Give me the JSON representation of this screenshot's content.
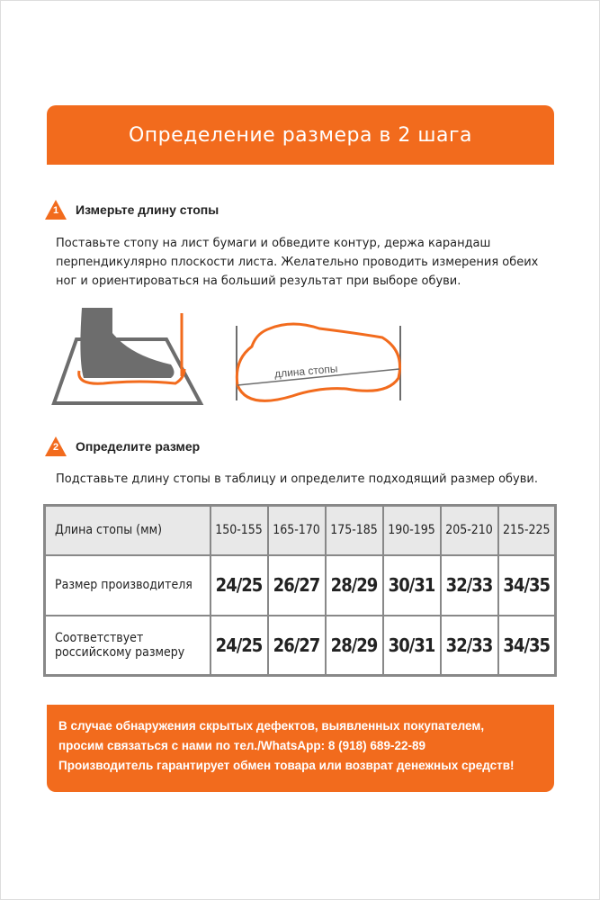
{
  "header": {
    "title": "Определение размера в 2 шага"
  },
  "step1": {
    "number": "1",
    "title": "Измерьте длину стопы",
    "text": [
      "Поставьте стопу на лист бумаги и обведите контур, держа карандаш",
      "перпендикулярно плоскости листа. Желательно проводить измерения обеих",
      "ног и ориентироваться на больший результат при выборе обуви."
    ],
    "illustration_label": "длина стопы"
  },
  "step2": {
    "number": "2",
    "title": "Определите размер",
    "text": "Подставьте длину стопы в таблицу и определите подходящий размер обуви."
  },
  "table": {
    "rows": [
      {
        "label": "Длина стопы (мм)",
        "values": [
          "150-155",
          "165-170",
          "175-185",
          "190-195",
          "205-210",
          "215-225"
        ]
      },
      {
        "label": "Размер производителя",
        "values": [
          "24/25",
          "26/27",
          "28/29",
          "30/31",
          "32/33",
          "34/35"
        ]
      },
      {
        "label": "Соответствует российскому размеру",
        "values": [
          "24/25",
          "26/27",
          "28/29",
          "30/31",
          "32/33",
          "34/35"
        ]
      }
    ]
  },
  "banner": {
    "lines": [
      "В случае обнаружения скрытых дефектов, выявленных покупателем,",
      "просим связаться с нами по тел./WhatsApp: 8 (918) 689-22-89",
      "Производитель гарантирует обмен товара или возврат денежных средств!"
    ]
  },
  "colors": {
    "accent": "#f26b1d",
    "gray": "#6d6d6d"
  }
}
